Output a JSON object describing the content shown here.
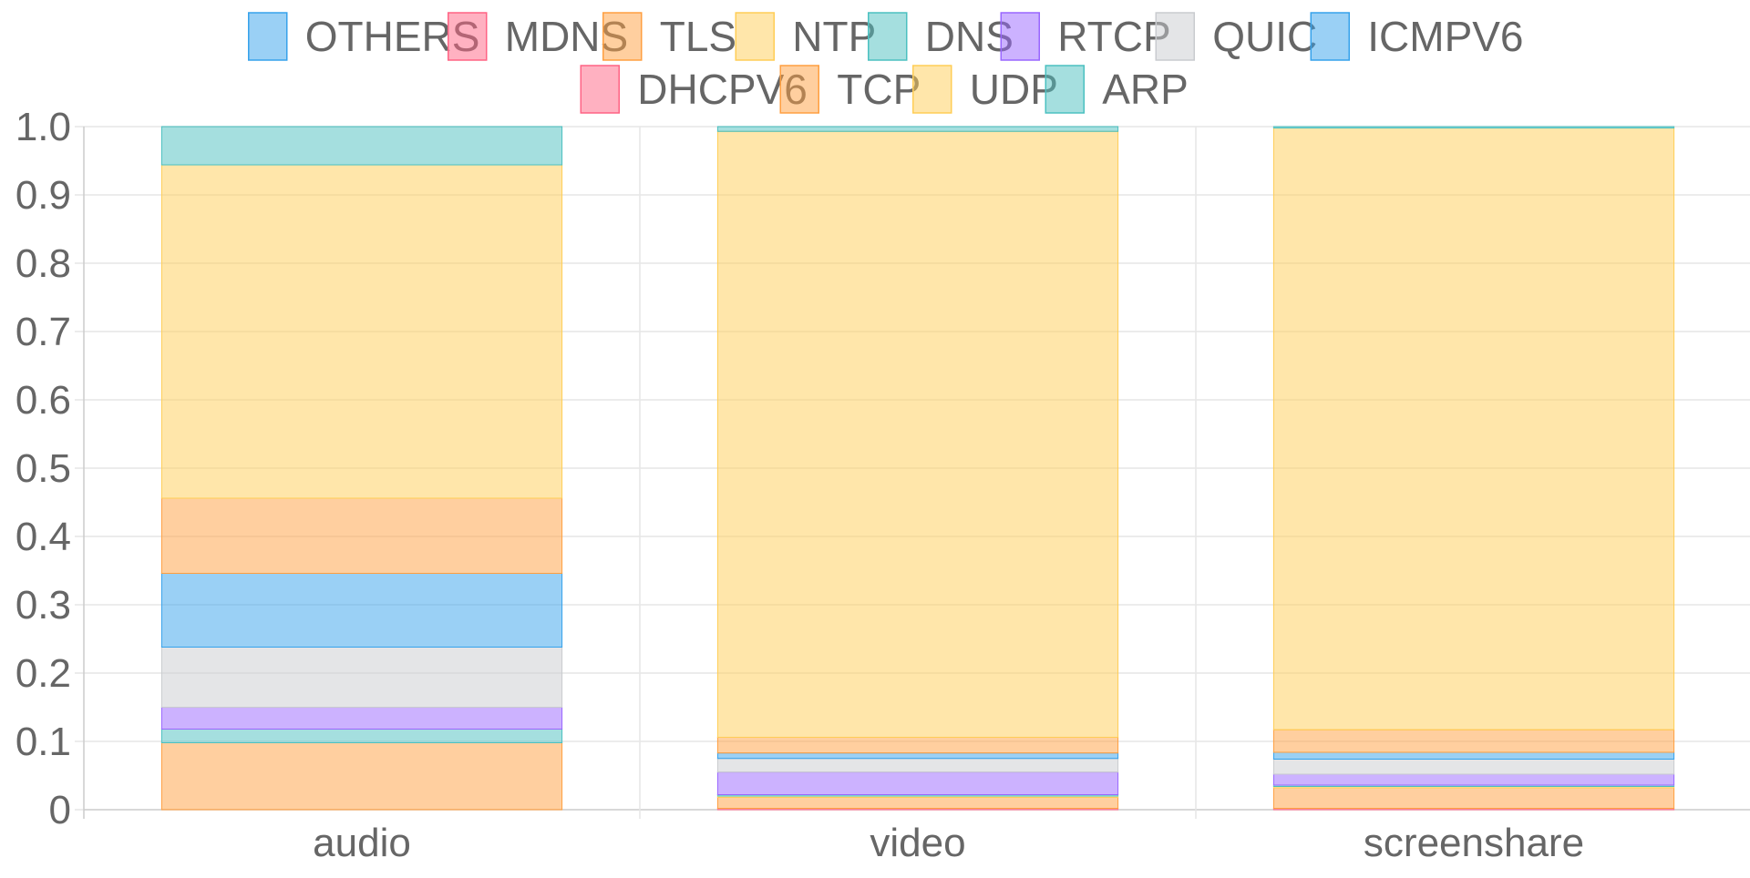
{
  "chart_data": {
    "type": "bar",
    "stacked": true,
    "title": "",
    "xlabel": "",
    "ylabel": "",
    "categories": [
      "audio",
      "video",
      "screenshare"
    ],
    "ylim": [
      0,
      1
    ],
    "y_ticks": [
      "0",
      "0.1",
      "0.2",
      "0.3",
      "0.4",
      "0.5",
      "0.6",
      "0.7",
      "0.8",
      "0.9",
      "1.0"
    ],
    "grid": true,
    "legend_position": "top-center",
    "series": [
      {
        "name": "OTHERS",
        "color": "#36a2eb",
        "values": [
          0.0,
          0.0,
          0.0
        ]
      },
      {
        "name": "MDNS",
        "color": "#ff6384",
        "values": [
          0.0,
          0.002,
          0.002
        ]
      },
      {
        "name": "TLS",
        "color": "#ff9f40",
        "values": [
          0.098,
          0.016,
          0.03
        ]
      },
      {
        "name": "NTP",
        "color": "#ffcd56",
        "values": [
          0.0,
          0.002,
          0.002
        ]
      },
      {
        "name": "DNS",
        "color": "#4bc0c0",
        "values": [
          0.02,
          0.002,
          0.002
        ]
      },
      {
        "name": "RTCP",
        "color": "#9966ff",
        "values": [
          0.032,
          0.033,
          0.016
        ]
      },
      {
        "name": "QUIC",
        "color": "#c9cbcf",
        "values": [
          0.088,
          0.02,
          0.022
        ]
      },
      {
        "name": "ICMPV6",
        "color": "#36a2eb",
        "values": [
          0.108,
          0.008,
          0.01
        ]
      },
      {
        "name": "DHCPV6",
        "color": "#ff6384",
        "values": [
          0.0,
          0.0,
          0.0
        ]
      },
      {
        "name": "TCP",
        "color": "#ff9f40",
        "values": [
          0.11,
          0.023,
          0.033
        ]
      },
      {
        "name": "UDP",
        "color": "#ffcd56",
        "values": [
          0.488,
          0.887,
          0.881
        ]
      },
      {
        "name": "ARP",
        "color": "#4bc0c0",
        "values": [
          0.056,
          0.007,
          0.002
        ]
      }
    ]
  }
}
